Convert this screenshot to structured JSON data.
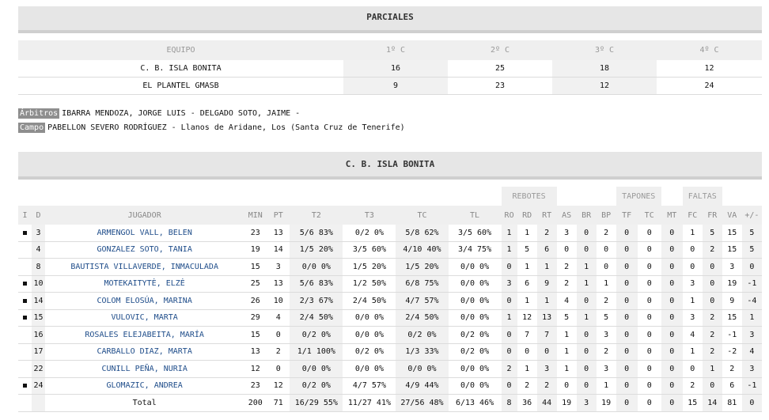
{
  "parciales": {
    "title": "PARCIALES",
    "headers": [
      "EQUIPO",
      "1º C",
      "2º C",
      "3º C",
      "4º C"
    ],
    "rows": [
      {
        "team": "C. B. ISLA BONITA",
        "q1": "16",
        "q2": "25",
        "q3": "18",
        "q4": "12"
      },
      {
        "team": "EL PLANTEL GMASB",
        "q1": "9",
        "q2": "23",
        "q3": "12",
        "q4": "24"
      }
    ]
  },
  "info": {
    "arbitros_label": "Árbitros",
    "arbitros_value": "IBARRA MENDOZA, JORGE LUIS - DELGADO SOTO, JAIME -",
    "campo_label": "Campo",
    "campo_value": "PABELLON SEVERO RODRÍGUEZ - Llanos de Aridane, Los (Santa Cruz de Tenerife)"
  },
  "boxscore": {
    "title": "C. B. ISLA BONITA",
    "groups": {
      "rebotes": "REBOTES",
      "tapones": "TAPONES",
      "faltas": "FALTAS"
    },
    "headers": {
      "i": "I",
      "d": "D",
      "jugador": "JUGADOR",
      "min": "MIN",
      "pt": "PT",
      "t2": "T2",
      "t3": "T3",
      "tc": "TC",
      "tl": "TL",
      "ro": "RO",
      "rd": "RD",
      "rt": "RT",
      "as": "AS",
      "br": "BR",
      "bp": "BP",
      "tf": "TF",
      "tc2": "TC",
      "mt": "MT",
      "fc": "FC",
      "fr": "FR",
      "va": "VA",
      "pm": "+/-"
    },
    "players": [
      {
        "starter": true,
        "d": "3",
        "name": "ARMENGOL VALL, BELEN",
        "min": "23",
        "pt": "13",
        "t2": "5/6 83%",
        "t3": "0/2 0%",
        "tc": "5/8 62%",
        "tl": "3/5 60%",
        "ro": "1",
        "rd": "1",
        "rt": "2",
        "as": "3",
        "br": "0",
        "bp": "2",
        "tf": "0",
        "tc2": "0",
        "mt": "0",
        "fc": "1",
        "fr": "5",
        "va": "15",
        "pm": "5"
      },
      {
        "starter": false,
        "d": "4",
        "name": "GONZALEZ SOTO, TANIA",
        "min": "19",
        "pt": "14",
        "t2": "1/5 20%",
        "t3": "3/5 60%",
        "tc": "4/10 40%",
        "tl": "3/4 75%",
        "ro": "1",
        "rd": "5",
        "rt": "6",
        "as": "0",
        "br": "0",
        "bp": "0",
        "tf": "0",
        "tc2": "0",
        "mt": "0",
        "fc": "0",
        "fr": "2",
        "va": "15",
        "pm": "5"
      },
      {
        "starter": false,
        "d": "8",
        "name": "BAUTISTA VILLAVERDE, INMACULADA",
        "min": "15",
        "pt": "3",
        "t2": "0/0 0%",
        "t3": "1/5 20%",
        "tc": "1/5 20%",
        "tl": "0/0 0%",
        "ro": "0",
        "rd": "1",
        "rt": "1",
        "as": "2",
        "br": "1",
        "bp": "0",
        "tf": "0",
        "tc2": "0",
        "mt": "0",
        "fc": "0",
        "fr": "0",
        "va": "3",
        "pm": "0"
      },
      {
        "starter": true,
        "d": "10",
        "name": "MOTEKAITYTĖ, ELZĖ",
        "min": "25",
        "pt": "13",
        "t2": "5/6 83%",
        "t3": "1/2 50%",
        "tc": "6/8 75%",
        "tl": "0/0 0%",
        "ro": "3",
        "rd": "6",
        "rt": "9",
        "as": "2",
        "br": "1",
        "bp": "1",
        "tf": "0",
        "tc2": "0",
        "mt": "0",
        "fc": "3",
        "fr": "0",
        "va": "19",
        "pm": "-1"
      },
      {
        "starter": true,
        "d": "14",
        "name": "COLOM ELOSÚA, MARINA",
        "min": "26",
        "pt": "10",
        "t2": "2/3 67%",
        "t3": "2/4 50%",
        "tc": "4/7 57%",
        "tl": "0/0 0%",
        "ro": "0",
        "rd": "1",
        "rt": "1",
        "as": "4",
        "br": "0",
        "bp": "2",
        "tf": "0",
        "tc2": "0",
        "mt": "0",
        "fc": "1",
        "fr": "0",
        "va": "9",
        "pm": "-4"
      },
      {
        "starter": true,
        "d": "15",
        "name": "VULOVIC, MARTA",
        "min": "29",
        "pt": "4",
        "t2": "2/4 50%",
        "t3": "0/0 0%",
        "tc": "2/4 50%",
        "tl": "0/0 0%",
        "ro": "1",
        "rd": "12",
        "rt": "13",
        "as": "5",
        "br": "1",
        "bp": "5",
        "tf": "0",
        "tc2": "0",
        "mt": "0",
        "fc": "3",
        "fr": "2",
        "va": "15",
        "pm": "1"
      },
      {
        "starter": false,
        "d": "16",
        "name": "ROSALES ELEJABEITA, MARÍA",
        "min": "15",
        "pt": "0",
        "t2": "0/2 0%",
        "t3": "0/0 0%",
        "tc": "0/2 0%",
        "tl": "0/2 0%",
        "ro": "0",
        "rd": "7",
        "rt": "7",
        "as": "1",
        "br": "0",
        "bp": "3",
        "tf": "0",
        "tc2": "0",
        "mt": "0",
        "fc": "4",
        "fr": "2",
        "va": "-1",
        "pm": "3"
      },
      {
        "starter": false,
        "d": "17",
        "name": "CARBALLO DIAZ, MARTA",
        "min": "13",
        "pt": "2",
        "t2": "1/1 100%",
        "t3": "0/2 0%",
        "tc": "1/3 33%",
        "tl": "0/2 0%",
        "ro": "0",
        "rd": "0",
        "rt": "0",
        "as": "1",
        "br": "0",
        "bp": "2",
        "tf": "0",
        "tc2": "0",
        "mt": "0",
        "fc": "1",
        "fr": "2",
        "va": "-2",
        "pm": "4"
      },
      {
        "starter": false,
        "d": "22",
        "name": "CUNILL PEÑA, NURIA",
        "min": "12",
        "pt": "0",
        "t2": "0/0 0%",
        "t3": "0/0 0%",
        "tc": "0/0 0%",
        "tl": "0/0 0%",
        "ro": "2",
        "rd": "1",
        "rt": "3",
        "as": "1",
        "br": "0",
        "bp": "3",
        "tf": "0",
        "tc2": "0",
        "mt": "0",
        "fc": "0",
        "fr": "1",
        "va": "2",
        "pm": "3"
      },
      {
        "starter": true,
        "d": "24",
        "name": "GLOMAZIC, ANDREA",
        "min": "23",
        "pt": "12",
        "t2": "0/2 0%",
        "t3": "4/7 57%",
        "tc": "4/9 44%",
        "tl": "0/0 0%",
        "ro": "0",
        "rd": "2",
        "rt": "2",
        "as": "0",
        "br": "0",
        "bp": "1",
        "tf": "0",
        "tc2": "0",
        "mt": "0",
        "fc": "2",
        "fr": "0",
        "va": "6",
        "pm": "-1"
      }
    ],
    "total": {
      "label": "Total",
      "min": "200",
      "pt": "71",
      "t2": "16/29 55%",
      "t3": "11/27 41%",
      "tc": "27/56 48%",
      "tl": "6/13 46%",
      "ro": "8",
      "rd": "36",
      "rt": "44",
      "as": "19",
      "br": "3",
      "bp": "19",
      "tf": "0",
      "tc2": "0",
      "mt": "0",
      "fc": "15",
      "fr": "14",
      "va": "81",
      "pm": "0"
    }
  }
}
